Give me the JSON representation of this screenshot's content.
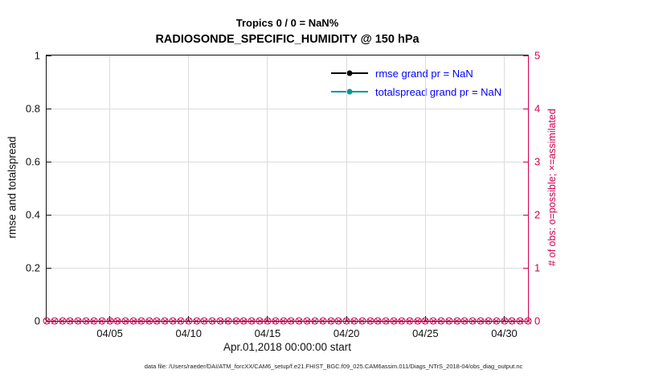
{
  "figure": {
    "title": "Tropics 0 / 0 = NaN%",
    "subtitle": "RADIOSONDE_SPECIFIC_HUMIDITY @ 150 hPa",
    "footnote": "data file: /Users/raeder/DAI/ATM_forcXX/CAM6_setup/f.e21.FHIST_BGC.f09_025.CAM6assim.011/Diags_NTrS_2018-04/obs_diag_output.nc"
  },
  "colors": {
    "obs_axis": "#cc0052",
    "rmse": "#000000",
    "totalspread": "#009999",
    "legend_text": "#0000ff",
    "grid": "#dcdcdc"
  },
  "legend": {
    "items": [
      {
        "label": "rmse grand pr = NaN",
        "color": "#000000"
      },
      {
        "label": "totalspread grand pr = NaN",
        "color": "#009999"
      }
    ]
  },
  "chart_data": {
    "type": "line",
    "title": "Tropics 0 / 0 = NaN%",
    "subtitle": "RADIOSONDE_SPECIFIC_HUMIDITY @ 150 hPa",
    "xlabel": "Apr.01,2018 00:00:00 start",
    "ylabel_left": "rmse and totalspread",
    "ylabel_right": "# of obs: o=possible; ×=assimilated",
    "xlim_days": [
      0,
      30.5
    ],
    "xticks": [
      {
        "day": 4,
        "label": "04/05"
      },
      {
        "day": 9,
        "label": "04/10"
      },
      {
        "day": 14,
        "label": "04/15"
      },
      {
        "day": 19,
        "label": "04/20"
      },
      {
        "day": 24,
        "label": "04/25"
      },
      {
        "day": 29,
        "label": "04/30"
      }
    ],
    "ylim_left": [
      0,
      1
    ],
    "yticks_left": [
      {
        "v": 0,
        "label": "0"
      },
      {
        "v": 0.2,
        "label": "0.2"
      },
      {
        "v": 0.4,
        "label": "0.4"
      },
      {
        "v": 0.6,
        "label": "0.6"
      },
      {
        "v": 0.8,
        "label": "0.8"
      },
      {
        "v": 1,
        "label": "1"
      }
    ],
    "ylim_right": [
      0,
      5
    ],
    "yticks_right": [
      0,
      1,
      2,
      3,
      4,
      5
    ],
    "series": [
      {
        "name": "rmse grand pr = NaN",
        "type": "line",
        "color": "#000000",
        "values": [],
        "note": "all values NaN, nothing plotted"
      },
      {
        "name": "totalspread grand pr = NaN",
        "type": "line",
        "color": "#009999",
        "values": [],
        "note": "all values NaN, nothing plotted"
      }
    ],
    "obs_counts": {
      "description": "possible (o) and assimilated (x) observation counts, all zero, plotted on right axis",
      "value": 0,
      "start_day": 0,
      "interval_days": 0.5,
      "count": 62,
      "color": "#cc0052"
    },
    "grid": true,
    "legend_position": "upper center, no border"
  }
}
